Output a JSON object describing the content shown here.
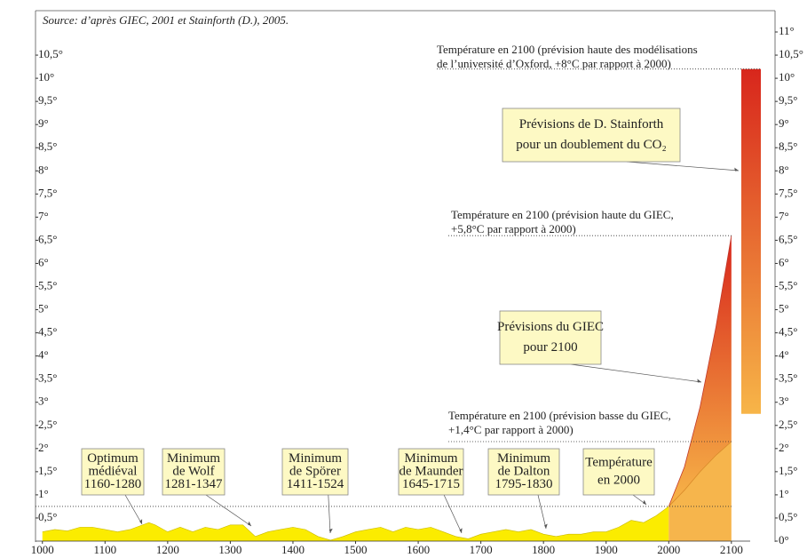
{
  "chart_data": {
    "type": "area",
    "source": "Source: d’après GIEC, 2001 et Stainforth (D.), 2005.",
    "xlim": [
      989,
      2130
    ],
    "xticks": [
      1000,
      1100,
      1200,
      1300,
      1400,
      1500,
      1600,
      1700,
      1800,
      1900,
      2000,
      2100
    ],
    "ylim": [
      0,
      11
    ],
    "yticks": [
      {
        "value": 0.5,
        "label": "0,5°"
      },
      {
        "value": 1,
        "label": "1°"
      },
      {
        "value": 1.5,
        "label": "1,5°"
      },
      {
        "value": 2,
        "label": "2°"
      },
      {
        "value": 2.5,
        "label": "2,5°"
      },
      {
        "value": 3,
        "label": "3°"
      },
      {
        "value": 3.5,
        "label": "3,5°"
      },
      {
        "value": 4,
        "label": "4°"
      },
      {
        "value": 4.5,
        "label": "4,5°"
      },
      {
        "value": 5,
        "label": "5°"
      },
      {
        "value": 5.5,
        "label": "5,5°"
      },
      {
        "value": 6,
        "label": "6°"
      },
      {
        "value": 6.5,
        "label": "6,5°"
      },
      {
        "value": 7,
        "label": "7°"
      },
      {
        "value": 7.5,
        "label": "7,5°"
      },
      {
        "value": 8,
        "label": "8°"
      },
      {
        "value": 8.5,
        "label": "8,5°"
      },
      {
        "value": 9,
        "label": "9°"
      },
      {
        "value": 9.5,
        "label": "9,5°"
      },
      {
        "value": 10,
        "label": "10°"
      },
      {
        "value": 10.5,
        "label": "10,5°"
      }
    ],
    "y2lim": [
      0,
      11
    ],
    "y2ticks": [
      {
        "value": 0,
        "label": "0°"
      },
      {
        "value": 0.5,
        "label": "0,5°"
      },
      {
        "value": 1,
        "label": "1°"
      },
      {
        "value": 1.5,
        "label": "1,5°"
      },
      {
        "value": 2,
        "label": "2°"
      },
      {
        "value": 2.5,
        "label": "2,5°"
      },
      {
        "value": 3,
        "label": "3°"
      },
      {
        "value": 3.5,
        "label": "3,5°"
      },
      {
        "value": 4,
        "label": "4°"
      },
      {
        "value": 4.5,
        "label": "4,5°"
      },
      {
        "value": 5,
        "label": "5°"
      },
      {
        "value": 5.5,
        "label": "5,5°"
      },
      {
        "value": 6,
        "label": "6°"
      },
      {
        "value": 6.5,
        "label": "6,5°"
      },
      {
        "value": 7,
        "label": "7°"
      },
      {
        "value": 7.5,
        "label": "7,5°"
      },
      {
        "value": 8,
        "label": "8°"
      },
      {
        "value": 8.5,
        "label": "8,5°"
      },
      {
        "value": 9,
        "label": "9°"
      },
      {
        "value": 9.5,
        "label": "9,5°"
      },
      {
        "value": 10,
        "label": "10°"
      },
      {
        "value": 10.5,
        "label": "10,5°"
      },
      {
        "value": 11,
        "label": "11°"
      }
    ],
    "series": [
      {
        "color": "#fbec00",
        "x": [
          1000,
          1020,
          1040,
          1060,
          1080,
          1100,
          1120,
          1140,
          1160,
          1170,
          1180,
          1200,
          1220,
          1240,
          1260,
          1280,
          1300,
          1320,
          1340,
          1360,
          1380,
          1400,
          1420,
          1440,
          1460,
          1480,
          1500,
          1520,
          1540,
          1560,
          1580,
          1600,
          1620,
          1640,
          1660,
          1680,
          1700,
          1720,
          1740,
          1760,
          1780,
          1800,
          1820,
          1840,
          1860,
          1880,
          1900,
          1920,
          1940,
          1960,
          1980,
          2000
        ],
        "values": [
          0.2,
          0.25,
          0.22,
          0.3,
          0.3,
          0.25,
          0.2,
          0.25,
          0.35,
          0.4,
          0.35,
          0.2,
          0.3,
          0.2,
          0.3,
          0.25,
          0.35,
          0.35,
          0.1,
          0.2,
          0.25,
          0.3,
          0.25,
          0.1,
          0.02,
          0.1,
          0.2,
          0.25,
          0.3,
          0.2,
          0.3,
          0.25,
          0.3,
          0.2,
          0.1,
          0.05,
          0.15,
          0.2,
          0.25,
          0.2,
          0.25,
          0.15,
          0.1,
          0.15,
          0.15,
          0.2,
          0.2,
          0.3,
          0.45,
          0.4,
          0.55,
          0.75
        ]
      },
      {
        "color": "#d8261c",
        "x": [
          2000,
          2025,
          2050,
          2075,
          2100
        ],
        "values": [
          0.75,
          1.6,
          2.9,
          4.6,
          6.6
        ]
      },
      {
        "color": "#f6b54c",
        "x": [
          2000,
          2025,
          2050,
          2075,
          2100
        ],
        "values": [
          0.75,
          1.1,
          1.5,
          1.85,
          2.15
        ]
      }
    ],
    "range": {
      "values": [
        2.75,
        10.2
      ],
      "color": "#d8261c"
    },
    "annotations": [
      {
        "lines": [
          "Optimum",
          "médiéval",
          "1160-1280"
        ]
      },
      {
        "lines": [
          "Minimum",
          "de Wolf",
          "1281-1347"
        ]
      },
      {
        "lines": [
          "Minimum",
          "de Spörer",
          "1411-1524"
        ]
      },
      {
        "lines": [
          "Minimum",
          "de Maunder",
          "1645-1715"
        ]
      },
      {
        "lines": [
          "Minimum",
          "de Dalton",
          "1795-1830"
        ]
      },
      {
        "lines": [
          "Température",
          "en 2000"
        ]
      },
      {
        "lines": [
          "Prévisions du GIEC",
          "pour 2100"
        ]
      },
      {
        "lines": [
          "Prévisions de D. Stainforth",
          "pour un doublement du CO₂"
        ]
      },
      {
        "lines": [
          "Température en 2100 (prévision haute des modélisations",
          "de l’université d’Oxford, +8°C par rapport à 2000)"
        ]
      },
      {
        "lines": [
          "Température en 2100 (prévision haute du GIEC,",
          "+5,8°C par rapport à 2000)"
        ]
      },
      {
        "lines": [
          "Température en 2100 (prévision basse du GIEC,",
          "+1,4°C par rapport à 2000)"
        ]
      }
    ]
  }
}
